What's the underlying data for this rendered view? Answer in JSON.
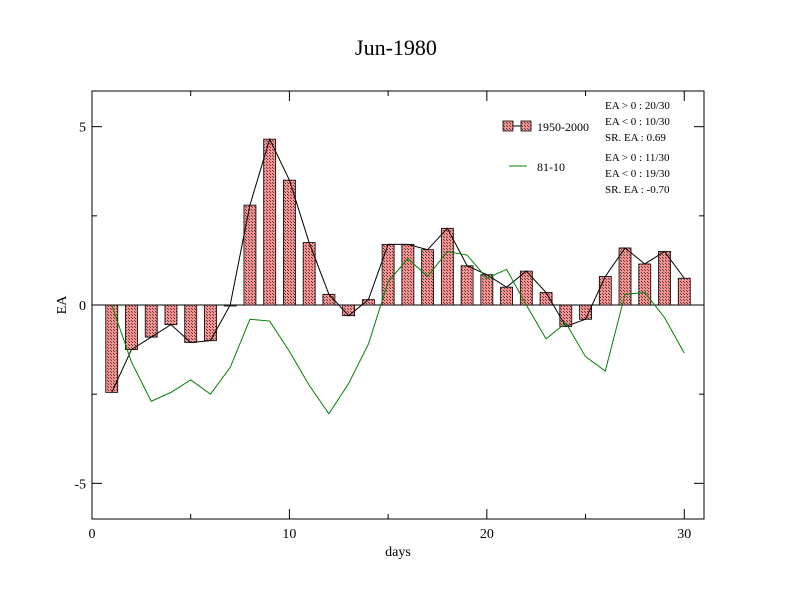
{
  "chart_data": {
    "type": "bar",
    "title": "Jun-1980",
    "xlabel": "days",
    "ylabel": "EA",
    "xlim": [
      0,
      31
    ],
    "ylim": [
      -6,
      6
    ],
    "xticks": [
      0,
      10,
      20,
      30
    ],
    "yticks": [
      -5,
      0,
      5
    ],
    "x": [
      1,
      2,
      3,
      4,
      5,
      6,
      7,
      8,
      9,
      10,
      11,
      12,
      13,
      14,
      15,
      16,
      17,
      18,
      19,
      20,
      21,
      22,
      23,
      24,
      25,
      26,
      27,
      28,
      29,
      30
    ],
    "series": [
      {
        "name": "1950-2000",
        "kind": "bar+line",
        "color": "#e06060",
        "values": [
          -2.45,
          -1.25,
          -0.9,
          -0.55,
          -1.05,
          -1.0,
          0.0,
          2.8,
          4.65,
          3.5,
          1.75,
          0.3,
          -0.3,
          0.15,
          1.7,
          1.7,
          1.55,
          2.15,
          1.1,
          0.85,
          0.5,
          0.95,
          0.35,
          -0.6,
          -0.4,
          0.8,
          1.6,
          1.15,
          1.5,
          0.75
        ]
      },
      {
        "name": "81-10",
        "kind": "line",
        "color": "#008000",
        "values": [
          0.0,
          -1.6,
          -2.7,
          -2.45,
          -2.1,
          -2.5,
          -1.75,
          -0.4,
          -0.45,
          -1.3,
          -2.25,
          -3.05,
          -2.2,
          -1.1,
          0.65,
          1.3,
          0.8,
          1.5,
          1.4,
          0.75,
          1.0,
          0.0,
          -0.95,
          -0.5,
          -1.45,
          -1.85,
          0.3,
          0.35,
          -0.35,
          -1.35
        ]
      }
    ],
    "annotations": {
      "block1": [
        "EA > 0 : 20/30",
        "EA < 0 : 10/30",
        "SR. EA :  0.69"
      ],
      "block2": [
        "EA > 0 : 11/30",
        "EA < 0 : 19/30",
        "SR. EA : -0.70"
      ]
    },
    "grid": false
  }
}
